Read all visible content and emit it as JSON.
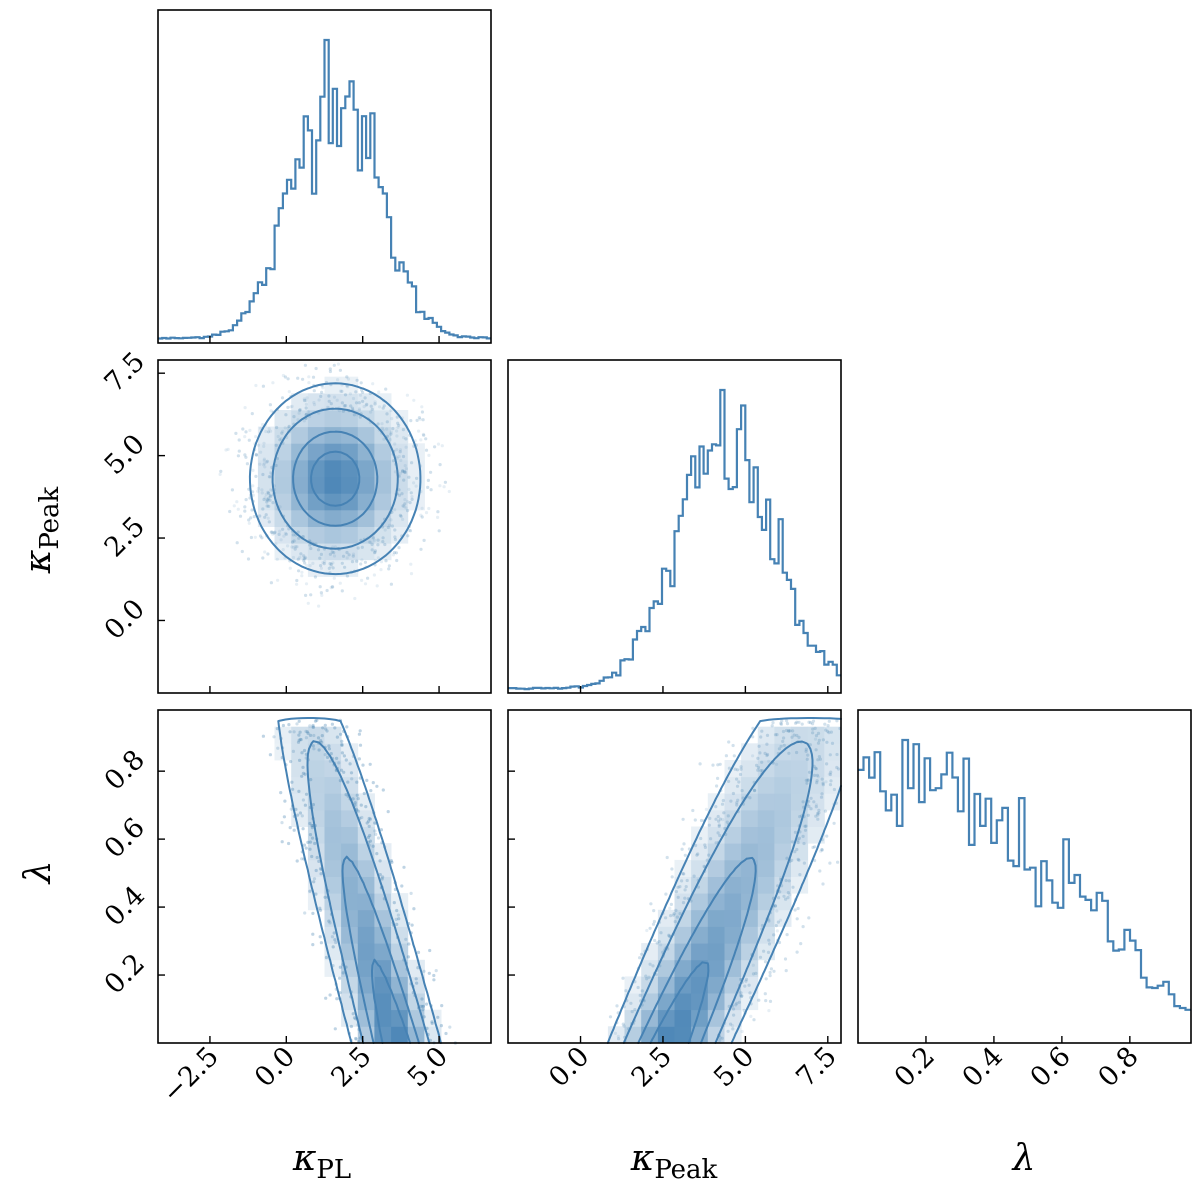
{
  "chart_data": {
    "type": "corner",
    "parameters": [
      {
        "key": "kappa_pl",
        "symbol": "κ",
        "subscript": "PL",
        "range": [
          -4.2,
          6.7
        ],
        "ticks": [
          "−2.5",
          "0.0",
          "2.5",
          "5.0"
        ],
        "tick_values": [
          -2.5,
          0.0,
          2.5,
          5.0
        ]
      },
      {
        "key": "kappa_peak",
        "symbol": "κ",
        "subscript": "Peak",
        "range": [
          -2.2,
          7.9
        ],
        "ticks": [
          "0.0",
          "2.5",
          "5.0",
          "7.5"
        ],
        "tick_values": [
          0.0,
          2.5,
          5.0,
          7.5
        ]
      },
      {
        "key": "lambda",
        "symbol": "λ",
        "subscript": "",
        "range": [
          0.0,
          0.98
        ],
        "ticks": [
          "0.2",
          "0.4",
          "0.6",
          "0.8"
        ],
        "tick_values": [
          0.2,
          0.4,
          0.6,
          0.8
        ]
      }
    ],
    "marginals": {
      "kappa_pl": {
        "peak": 1.6,
        "sigma": 1.35,
        "shape": "gaussian"
      },
      "kappa_peak": {
        "peak": 4.4,
        "sigma": 1.45,
        "shape": "gaussian"
      },
      "lambda": {
        "start_density": 0.82,
        "end_density": 0.08,
        "shape": "decreasing"
      }
    },
    "joint": {
      "kappa_pl_vs_kappa_peak": {
        "mean": [
          1.6,
          4.3
        ],
        "sigma": [
          1.35,
          1.4
        ],
        "correlation": 0.0
      },
      "kappa_pl_vs_lambda": {
        "trend": "negative",
        "mean": [
          2.1,
          0.3
        ]
      },
      "kappa_peak_vs_lambda": {
        "trend": "positive",
        "mean": [
          4.0,
          0.3
        ]
      }
    },
    "color": "#4682b4",
    "grid": false,
    "legend": "none"
  }
}
